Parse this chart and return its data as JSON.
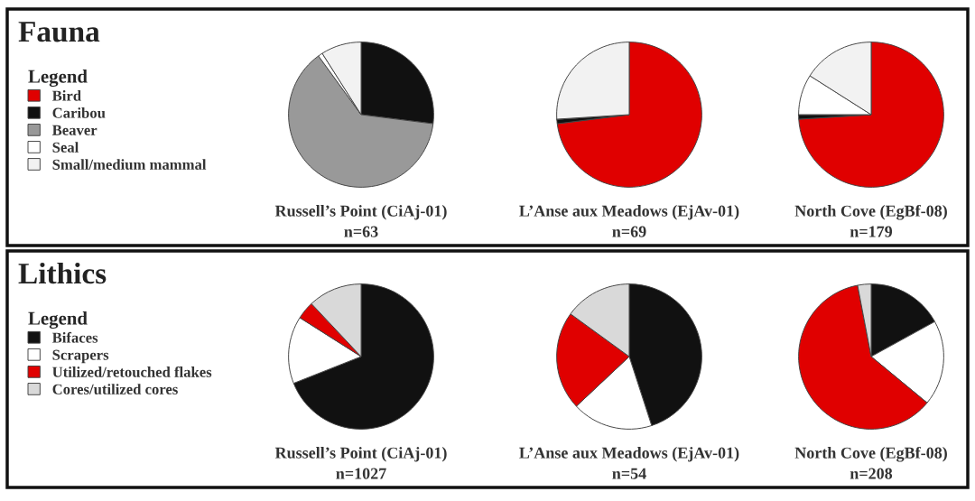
{
  "chart_data": [
    {
      "type": "pie",
      "title": "Fauna",
      "legend_title": "Legend",
      "legend": "left",
      "annotations": [
        "n=63",
        "n=69",
        "n=179"
      ],
      "categories": [
        "Bird",
        "Caribou",
        "Beaver",
        "Seal",
        "Small/medium mammal"
      ],
      "colors": [
        "#e00000",
        "#111111",
        "#999999",
        "#ffffff",
        "#f2f2f2"
      ],
      "series": [
        {
          "name": "Russell’s Point (CiAj-01)",
          "values": [
            0,
            27,
            63,
            1,
            9
          ]
        },
        {
          "name": "L’Anse aux Meadows (EjAv-01)",
          "values": [
            73,
            1,
            0,
            0,
            26
          ]
        },
        {
          "name": "North Cove (EgBf-08)",
          "values": [
            74,
            1,
            0,
            9,
            16
          ]
        }
      ]
    },
    {
      "type": "pie",
      "title": "Lithics",
      "legend_title": "Legend",
      "legend": "left",
      "annotations": [
        "n=1027",
        "n=54",
        "n=208"
      ],
      "categories": [
        "Bifaces",
        "Scrapers",
        "Utilized/retouched flakes",
        "Cores/utilized cores"
      ],
      "colors": [
        "#111111",
        "#ffffff",
        "#e00000",
        "#d9d9d9"
      ],
      "series": [
        {
          "name": "Russell’s Point (CiAj-01)",
          "values": [
            69,
            15,
            4,
            12
          ]
        },
        {
          "name": "L’Anse aux Meadows (EjAv-01)",
          "values": [
            45,
            18,
            22,
            15
          ]
        },
        {
          "name": "North Cove (EgBf-08)",
          "values": [
            17,
            19,
            61,
            3
          ]
        }
      ]
    }
  ]
}
